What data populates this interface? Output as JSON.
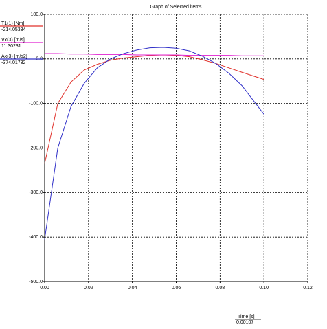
{
  "chart_data": {
    "type": "line",
    "title": "Graph of Selected items",
    "x_label": "Time [s]",
    "x_readout": 0.00107,
    "x": [
      0,
      0.006,
      0.012,
      0.018,
      0.024,
      0.03,
      0.036,
      0.042,
      0.048,
      0.054,
      0.06,
      0.066,
      0.072,
      0.078,
      0.084,
      0.09,
      0.1
    ],
    "series": [
      {
        "name": "T1(1) [Nm]",
        "color": "#e0302a",
        "readout": -214.05334,
        "values": [
          -235,
          -100,
          -52,
          -25,
          -12,
          -3,
          2,
          5,
          8,
          9,
          8,
          5,
          -2,
          -10,
          -20,
          -30,
          -46
        ]
      },
      {
        "name": "Vx(3) [m/s]",
        "color": "#e020d0",
        "readout": 11.30231,
        "values": [
          12,
          12,
          11,
          11,
          10,
          10,
          10,
          9,
          9,
          9,
          9,
          8,
          8,
          8,
          8,
          7,
          7
        ]
      },
      {
        "name": "Ax(3) [m/s2]",
        "color": "#3030c8",
        "readout": -374.01732,
        "values": [
          -405,
          -200,
          -107,
          -55,
          -20,
          0,
          12,
          20,
          25,
          26,
          24,
          18,
          6,
          -10,
          -32,
          -60,
          -124
        ]
      }
    ],
    "xlim": [
      0,
      0.12
    ],
    "xticks": [
      {
        "value": 0,
        "label": "0.00"
      },
      {
        "value": 0.02,
        "label": "0.02"
      },
      {
        "value": 0.04,
        "label": "0.04"
      },
      {
        "value": 0.06,
        "label": "0.06"
      },
      {
        "value": 0.08,
        "label": "0.08"
      },
      {
        "value": 0.1,
        "label": "0.10"
      },
      {
        "value": 0.12,
        "label": "0.12"
      }
    ],
    "ylim": [
      -500,
      100
    ],
    "yticks": [
      {
        "value": -500,
        "label": "-500.0"
      },
      {
        "value": -400,
        "label": "-400.0"
      },
      {
        "value": -300,
        "label": "-300.0"
      },
      {
        "value": -200,
        "label": "-200.0"
      },
      {
        "value": -100,
        "label": "-100.0"
      },
      {
        "value": 0,
        "label": "0.0"
      },
      {
        "value": 100,
        "label": "100.0"
      }
    ],
    "grid": true
  }
}
